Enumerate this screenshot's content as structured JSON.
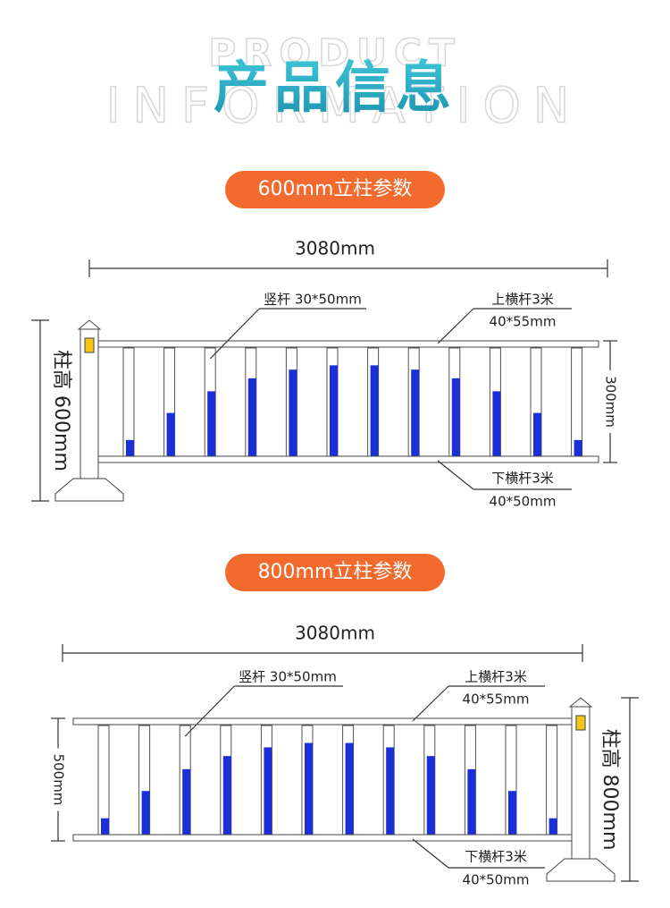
{
  "header": {
    "title": "产品信息",
    "watermark": [
      "PRODUCT",
      "INFORMATION"
    ]
  },
  "sections": [
    {
      "badge": "600mm立柱参数",
      "width": "3080mm",
      "vertical_bar": "竖杆 30*50mm",
      "top_rail": {
        "name": "上横杆3米",
        "size": "40*55mm"
      },
      "bottom_rail": {
        "name": "下横杆3米",
        "size": "40*50mm"
      },
      "post_height": "柱高 600mm",
      "panel_height": "300mm"
    },
    {
      "badge": "800mm立柱参数",
      "width": "3080mm",
      "vertical_bar": "竖杆 30*50mm",
      "top_rail": {
        "name": "上横杆3米",
        "size": "40*55mm"
      },
      "bottom_rail": {
        "name": "下横杆3米",
        "size": "40*50mm"
      },
      "post_height": "柱高 800mm",
      "panel_height": "500mm"
    }
  ]
}
